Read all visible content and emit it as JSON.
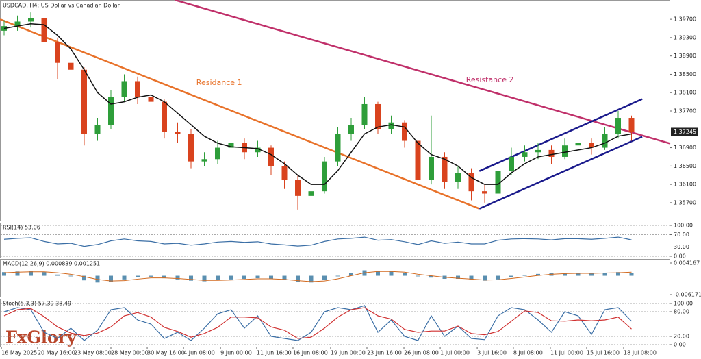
{
  "chart_data": [
    {
      "type": "candlestick",
      "title": "USDCAD, H4:  US Dollar vs Canadian Dollar",
      "open": [
        1.3945,
        1.3955,
        1.3965,
        1.3972,
        1.392,
        1.3875,
        1.386,
        1.372,
        1.374,
        1.38,
        1.3835,
        1.38,
        1.379,
        1.3725,
        1.372,
        1.366,
        1.3665,
        1.369,
        1.37,
        1.368,
        1.369,
        1.365,
        1.362,
        1.3585,
        1.3595,
        1.366,
        1.372,
        1.374,
        1.3785,
        1.373,
        1.3745,
        1.3705,
        1.362,
        1.367,
        1.3615,
        1.3635,
        1.3595,
        1.359,
        1.364,
        1.367,
        1.368,
        1.3685,
        1.367,
        1.3695,
        1.37,
        1.369,
        1.372,
        1.3755
      ],
      "high": [
        1.3968,
        1.3978,
        1.3985,
        1.398,
        1.393,
        1.389,
        1.3865,
        1.3755,
        1.3815,
        1.385,
        1.3845,
        1.3815,
        1.3795,
        1.3745,
        1.373,
        1.368,
        1.3705,
        1.3715,
        1.371,
        1.3705,
        1.3695,
        1.366,
        1.363,
        1.361,
        1.367,
        1.3735,
        1.3755,
        1.38,
        1.379,
        1.376,
        1.375,
        1.371,
        1.376,
        1.368,
        1.365,
        1.3645,
        1.361,
        1.366,
        1.369,
        1.3695,
        1.37,
        1.3695,
        1.371,
        1.3715,
        1.371,
        1.3735,
        1.377,
        1.376
      ],
      "low": [
        1.3935,
        1.3945,
        1.3952,
        1.3905,
        1.384,
        1.383,
        1.3695,
        1.3705,
        1.373,
        1.379,
        1.3785,
        1.377,
        1.371,
        1.37,
        1.3645,
        1.365,
        1.3655,
        1.368,
        1.3665,
        1.367,
        1.363,
        1.36,
        1.3555,
        1.357,
        1.359,
        1.365,
        1.3705,
        1.373,
        1.372,
        1.372,
        1.369,
        1.3605,
        1.361,
        1.36,
        1.36,
        1.3575,
        1.357,
        1.3585,
        1.363,
        1.366,
        1.3665,
        1.3655,
        1.3665,
        1.3685,
        1.3675,
        1.3685,
        1.371,
        1.3705
      ],
      "close": [
        1.3955,
        1.3965,
        1.3972,
        1.392,
        1.3875,
        1.386,
        1.372,
        1.374,
        1.38,
        1.3835,
        1.38,
        1.379,
        1.3725,
        1.372,
        1.366,
        1.3665,
        1.369,
        1.37,
        1.368,
        1.369,
        1.365,
        1.362,
        1.3585,
        1.3595,
        1.366,
        1.372,
        1.374,
        1.3785,
        1.373,
        1.3745,
        1.3705,
        1.362,
        1.367,
        1.3615,
        1.3635,
        1.3595,
        1.359,
        1.364,
        1.367,
        1.368,
        1.3685,
        1.367,
        1.3695,
        1.37,
        1.369,
        1.372,
        1.3755,
        1.3725
      ],
      "up_color": "#2e9e3a",
      "down_color": "#d9431e",
      "ma_values": [
        1.395,
        1.3955,
        1.396,
        1.3958,
        1.3935,
        1.3905,
        1.386,
        1.381,
        1.3785,
        1.379,
        1.38,
        1.3805,
        1.379,
        1.3765,
        1.374,
        1.3715,
        1.37,
        1.3692,
        1.369,
        1.3688,
        1.3675,
        1.3655,
        1.363,
        1.361,
        1.361,
        1.364,
        1.368,
        1.372,
        1.3735,
        1.374,
        1.3735,
        1.37,
        1.3675,
        1.3665,
        1.365,
        1.3625,
        1.361,
        1.361,
        1.3635,
        1.3655,
        1.367,
        1.3675,
        1.368,
        1.3685,
        1.369,
        1.37,
        1.3715,
        1.372
      ],
      "ma_color": "#111111",
      "ylim": [
        1.3531,
        1.4012
      ],
      "yticks": [
        {
          "value": 1.397,
          "label": "1.39700"
        },
        {
          "value": 1.393,
          "label": "1.39300"
        },
        {
          "value": 1.389,
          "label": "1.38900"
        },
        {
          "value": 1.385,
          "label": "1.38500"
        },
        {
          "value": 1.381,
          "label": "1.38100"
        },
        {
          "value": 1.377,
          "label": "1.37700"
        },
        {
          "value": 1.369,
          "label": "1.36900"
        },
        {
          "value": 1.365,
          "label": "1.36500"
        },
        {
          "value": 1.361,
          "label": "1.36100"
        },
        {
          "value": 1.357,
          "label": "1.35700"
        }
      ],
      "current_price": {
        "value": 1.37245,
        "label": "1.37245"
      },
      "xticks": [
        {
          "value": -0.2,
          "label": "16 May 2025"
        },
        {
          "value": 2.51,
          "label": "20 May 16:00"
        },
        {
          "value": 5.23,
          "label": "23 May 08:00"
        },
        {
          "value": 8,
          "label": "28 May 00:00"
        },
        {
          "value": 10.72,
          "label": "30 May 16:00"
        },
        {
          "value": 13.44,
          "label": "4 Jun 08:00"
        },
        {
          "value": 16.21,
          "label": "9 Jun 00:00"
        },
        {
          "value": 18.92,
          "label": "11 Jun 16:00"
        },
        {
          "value": 21.64,
          "label": "16 Jun 08:00"
        },
        {
          "value": 24.46,
          "label": "19 Jun 00:00"
        },
        {
          "value": 27.18,
          "label": "23 Jun 16:00"
        },
        {
          "value": 29.95,
          "label": "26 Jun 08:00"
        },
        {
          "value": 32.67,
          "label": "1 Jul 00:00"
        },
        {
          "value": 35.44,
          "label": "3 Jul 16:00"
        },
        {
          "value": 38.15,
          "label": "8 Jul 08:00"
        },
        {
          "value": 40.92,
          "label": "11 Jul 00:00"
        },
        {
          "value": 43.64,
          "label": "15 Jul 16:00"
        },
        {
          "value": 46.41,
          "label": "18 Jul 08:00"
        }
      ],
      "trendlines": [
        {
          "label": "Residance 1",
          "color": "#e8722a",
          "x": [
            -0.3,
            35.6
          ],
          "y": [
            1.397,
            1.3557
          ],
          "label_x": 14.4,
          "label_y": 1.3831
        },
        {
          "label": "Resistance 2",
          "color": "#c0306a",
          "x": [
            12.8,
            49.9
          ],
          "y": [
            1.4012,
            1.3699
          ],
          "label_x": 34.6,
          "label_y": 1.3837
        },
        {
          "color": "#1a1a8c",
          "x": [
            35.6,
            47.8
          ],
          "y": [
            1.3639,
            1.3796
          ]
        },
        {
          "color": "#1a1a8c",
          "x": [
            35.6,
            47.8
          ],
          "y": [
            1.3557,
            1.3714
          ]
        }
      ],
      "watermark": "FxGlory"
    },
    {
      "type": "line",
      "title": "RSI(14) 53.06",
      "color": "#3a6ea5",
      "values": [
        55,
        58,
        60,
        48,
        40,
        42,
        32,
        38,
        50,
        56,
        50,
        48,
        40,
        42,
        36,
        40,
        46,
        48,
        45,
        47,
        40,
        37,
        33,
        36,
        48,
        56,
        58,
        62,
        52,
        54,
        47,
        38,
        50,
        42,
        46,
        40,
        40,
        52,
        56,
        57,
        56,
        53,
        57,
        57,
        55,
        58,
        62,
        53
      ],
      "ylim": [
        -6.7,
        108.9
      ],
      "yticks": [
        {
          "value": 100,
          "label": "100.00"
        },
        {
          "value": 70,
          "label": "70.00"
        },
        {
          "value": 30,
          "label": "30.00"
        },
        {
          "value": 0,
          "label": "0.00"
        }
      ]
    },
    {
      "type": "bar",
      "title": "MACD(12,26,9) 0.000839 0.001251",
      "color": "#5a8fb0",
      "values": [
        0.0012,
        0.0014,
        0.0016,
        0.0012,
        0.0004,
        -0.0002,
        -0.0015,
        -0.0022,
        -0.002,
        -0.0012,
        -0.0005,
        -0.0003,
        -0.0008,
        -0.0012,
        -0.0016,
        -0.0018,
        -0.0015,
        -0.0012,
        -0.001,
        -0.0008,
        -0.001,
        -0.0014,
        -0.002,
        -0.0022,
        -0.0014,
        -0.0002,
        0.001,
        0.0018,
        0.0016,
        0.0014,
        0.001,
        -0.0002,
        -0.0006,
        -0.001,
        -0.001,
        -0.0014,
        -0.0016,
        -0.0012,
        -0.0004,
        0.0002,
        0.0006,
        0.0008,
        0.0009,
        0.0009,
        0.0008,
        0.0009,
        0.0012,
        0.0008
      ],
      "signal_values": [
        0.001,
        0.0012,
        0.0013,
        0.0013,
        0.001,
        0.0005,
        -0.0003,
        -0.0012,
        -0.0017,
        -0.0016,
        -0.0011,
        -0.0007,
        -0.0007,
        -0.0009,
        -0.0012,
        -0.0015,
        -0.0015,
        -0.0014,
        -0.0012,
        -0.001,
        -0.001,
        -0.0012,
        -0.0016,
        -0.0019,
        -0.0017,
        -0.001,
        0.0,
        0.001,
        0.0014,
        0.0014,
        0.0012,
        0.0005,
        0.0,
        -0.0005,
        -0.0008,
        -0.0011,
        -0.0014,
        -0.0013,
        -0.0009,
        -0.0004,
        0.0001,
        0.0005,
        0.0007,
        0.0008,
        0.0008,
        0.0009,
        0.001,
        0.0012
      ],
      "signal_color": "#d2691e",
      "ylim": [
        -0.006845,
        0.005515
      ],
      "yticks": [
        0.004167,
        -0.006171
      ]
    },
    {
      "type": "line",
      "title": "Stoch(5,3,3) 57.39 38.49",
      "series": [
        {
          "color": "#3a6ea5",
          "values": [
            80,
            90,
            85,
            30,
            15,
            40,
            10,
            35,
            85,
            90,
            60,
            50,
            15,
            30,
            10,
            40,
            75,
            85,
            40,
            70,
            20,
            15,
            10,
            30,
            80,
            90,
            85,
            95,
            30,
            60,
            20,
            10,
            70,
            20,
            45,
            15,
            12,
            70,
            90,
            85,
            60,
            30,
            80,
            70,
            25,
            85,
            90,
            57
          ]
        },
        {
          "color": "#d03030",
          "values": [
            70,
            85,
            88,
            68,
            43,
            28,
            22,
            28,
            43,
            70,
            78,
            67,
            42,
            32,
            18,
            27,
            42,
            67,
            67,
            65,
            43,
            35,
            15,
            18,
            40,
            67,
            85,
            90,
            70,
            62,
            37,
            30,
            33,
            33,
            45,
            27,
            24,
            32,
            57,
            82,
            78,
            58,
            57,
            60,
            58,
            60,
            67,
            38
          ]
        }
      ],
      "ylim": [
        -5,
        111.7
      ],
      "yticks": [
        {
          "value": 100,
          "label": "100.00"
        },
        {
          "value": 80,
          "label": "80.00"
        },
        {
          "value": 20,
          "label": "20.00"
        },
        {
          "value": 0,
          "label": "0.00"
        }
      ]
    }
  ]
}
